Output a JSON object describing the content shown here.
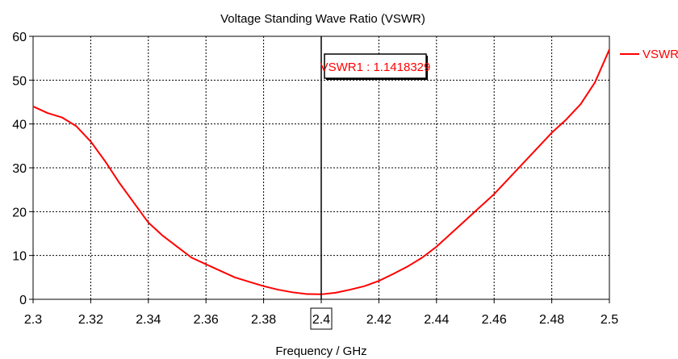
{
  "chart_data": {
    "type": "line",
    "title": "Voltage Standing Wave Ratio (VSWR)",
    "xlabel": "Frequency / GHz",
    "ylabel": "",
    "xlim": [
      2.3,
      2.5
    ],
    "ylim": [
      0,
      60
    ],
    "x_ticks": [
      "2.3",
      "2.32",
      "2.34",
      "2.36",
      "2.38",
      "2.4",
      "2.42",
      "2.44",
      "2.46",
      "2.48",
      "2.5"
    ],
    "y_ticks": [
      "0",
      "10",
      "20",
      "30",
      "40",
      "50",
      "60"
    ],
    "highlighted_x_tick": "2.4",
    "grid": true,
    "legend_position": "top-right",
    "series": [
      {
        "name": "VSWR1",
        "color": "#ff0000",
        "x": [
          2.3,
          2.305,
          2.31,
          2.315,
          2.32,
          2.325,
          2.33,
          2.335,
          2.34,
          2.345,
          2.35,
          2.355,
          2.36,
          2.365,
          2.37,
          2.375,
          2.38,
          2.385,
          2.39,
          2.395,
          2.4,
          2.405,
          2.41,
          2.415,
          2.42,
          2.425,
          2.43,
          2.435,
          2.44,
          2.445,
          2.45,
          2.455,
          2.46,
          2.465,
          2.47,
          2.475,
          2.48,
          2.485,
          2.49,
          2.495,
          2.5
        ],
        "y": [
          44,
          42.5,
          41.5,
          39.5,
          36,
          31.5,
          26.5,
          22,
          17.5,
          14.5,
          12,
          9.5,
          8,
          6.5,
          5,
          4,
          3,
          2.2,
          1.6,
          1.2,
          1.14,
          1.5,
          2.2,
          3,
          4.2,
          5.8,
          7.5,
          9.5,
          12,
          15,
          18,
          21,
          24,
          27.5,
          31,
          34.5,
          38,
          41,
          44.5,
          49.5,
          57
        ]
      }
    ],
    "marker": {
      "x": 2.4,
      "label": "VSWR1 : 1.1418329"
    }
  }
}
